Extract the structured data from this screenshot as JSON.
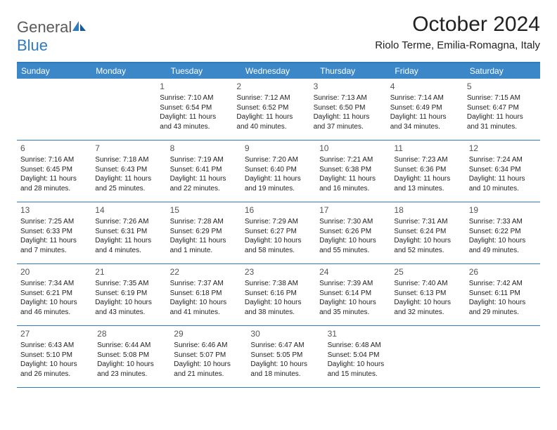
{
  "brand": {
    "general": "General",
    "blue": "Blue"
  },
  "title": "October 2024",
  "location": "Riolo Terme, Emilia-Romagna, Italy",
  "colors": {
    "header_bg": "#3b87c8",
    "border": "#2f7bbf",
    "logo_gray": "#5a5a5a",
    "logo_blue": "#2f7bbf"
  },
  "weekdays": [
    "Sunday",
    "Monday",
    "Tuesday",
    "Wednesday",
    "Thursday",
    "Friday",
    "Saturday"
  ],
  "weeks": [
    [
      null,
      null,
      {
        "n": "1",
        "sr": "Sunrise: 7:10 AM",
        "ss": "Sunset: 6:54 PM",
        "dl": "Daylight: 11 hours and 43 minutes."
      },
      {
        "n": "2",
        "sr": "Sunrise: 7:12 AM",
        "ss": "Sunset: 6:52 PM",
        "dl": "Daylight: 11 hours and 40 minutes."
      },
      {
        "n": "3",
        "sr": "Sunrise: 7:13 AM",
        "ss": "Sunset: 6:50 PM",
        "dl": "Daylight: 11 hours and 37 minutes."
      },
      {
        "n": "4",
        "sr": "Sunrise: 7:14 AM",
        "ss": "Sunset: 6:49 PM",
        "dl": "Daylight: 11 hours and 34 minutes."
      },
      {
        "n": "5",
        "sr": "Sunrise: 7:15 AM",
        "ss": "Sunset: 6:47 PM",
        "dl": "Daylight: 11 hours and 31 minutes."
      }
    ],
    [
      {
        "n": "6",
        "sr": "Sunrise: 7:16 AM",
        "ss": "Sunset: 6:45 PM",
        "dl": "Daylight: 11 hours and 28 minutes."
      },
      {
        "n": "7",
        "sr": "Sunrise: 7:18 AM",
        "ss": "Sunset: 6:43 PM",
        "dl": "Daylight: 11 hours and 25 minutes."
      },
      {
        "n": "8",
        "sr": "Sunrise: 7:19 AM",
        "ss": "Sunset: 6:41 PM",
        "dl": "Daylight: 11 hours and 22 minutes."
      },
      {
        "n": "9",
        "sr": "Sunrise: 7:20 AM",
        "ss": "Sunset: 6:40 PM",
        "dl": "Daylight: 11 hours and 19 minutes."
      },
      {
        "n": "10",
        "sr": "Sunrise: 7:21 AM",
        "ss": "Sunset: 6:38 PM",
        "dl": "Daylight: 11 hours and 16 minutes."
      },
      {
        "n": "11",
        "sr": "Sunrise: 7:23 AM",
        "ss": "Sunset: 6:36 PM",
        "dl": "Daylight: 11 hours and 13 minutes."
      },
      {
        "n": "12",
        "sr": "Sunrise: 7:24 AM",
        "ss": "Sunset: 6:34 PM",
        "dl": "Daylight: 11 hours and 10 minutes."
      }
    ],
    [
      {
        "n": "13",
        "sr": "Sunrise: 7:25 AM",
        "ss": "Sunset: 6:33 PM",
        "dl": "Daylight: 11 hours and 7 minutes."
      },
      {
        "n": "14",
        "sr": "Sunrise: 7:26 AM",
        "ss": "Sunset: 6:31 PM",
        "dl": "Daylight: 11 hours and 4 minutes."
      },
      {
        "n": "15",
        "sr": "Sunrise: 7:28 AM",
        "ss": "Sunset: 6:29 PM",
        "dl": "Daylight: 11 hours and 1 minute."
      },
      {
        "n": "16",
        "sr": "Sunrise: 7:29 AM",
        "ss": "Sunset: 6:27 PM",
        "dl": "Daylight: 10 hours and 58 minutes."
      },
      {
        "n": "17",
        "sr": "Sunrise: 7:30 AM",
        "ss": "Sunset: 6:26 PM",
        "dl": "Daylight: 10 hours and 55 minutes."
      },
      {
        "n": "18",
        "sr": "Sunrise: 7:31 AM",
        "ss": "Sunset: 6:24 PM",
        "dl": "Daylight: 10 hours and 52 minutes."
      },
      {
        "n": "19",
        "sr": "Sunrise: 7:33 AM",
        "ss": "Sunset: 6:22 PM",
        "dl": "Daylight: 10 hours and 49 minutes."
      }
    ],
    [
      {
        "n": "20",
        "sr": "Sunrise: 7:34 AM",
        "ss": "Sunset: 6:21 PM",
        "dl": "Daylight: 10 hours and 46 minutes."
      },
      {
        "n": "21",
        "sr": "Sunrise: 7:35 AM",
        "ss": "Sunset: 6:19 PM",
        "dl": "Daylight: 10 hours and 43 minutes."
      },
      {
        "n": "22",
        "sr": "Sunrise: 7:37 AM",
        "ss": "Sunset: 6:18 PM",
        "dl": "Daylight: 10 hours and 41 minutes."
      },
      {
        "n": "23",
        "sr": "Sunrise: 7:38 AM",
        "ss": "Sunset: 6:16 PM",
        "dl": "Daylight: 10 hours and 38 minutes."
      },
      {
        "n": "24",
        "sr": "Sunrise: 7:39 AM",
        "ss": "Sunset: 6:14 PM",
        "dl": "Daylight: 10 hours and 35 minutes."
      },
      {
        "n": "25",
        "sr": "Sunrise: 7:40 AM",
        "ss": "Sunset: 6:13 PM",
        "dl": "Daylight: 10 hours and 32 minutes."
      },
      {
        "n": "26",
        "sr": "Sunrise: 7:42 AM",
        "ss": "Sunset: 6:11 PM",
        "dl": "Daylight: 10 hours and 29 minutes."
      }
    ],
    [
      {
        "n": "27",
        "sr": "Sunrise: 6:43 AM",
        "ss": "Sunset: 5:10 PM",
        "dl": "Daylight: 10 hours and 26 minutes."
      },
      {
        "n": "28",
        "sr": "Sunrise: 6:44 AM",
        "ss": "Sunset: 5:08 PM",
        "dl": "Daylight: 10 hours and 23 minutes."
      },
      {
        "n": "29",
        "sr": "Sunrise: 6:46 AM",
        "ss": "Sunset: 5:07 PM",
        "dl": "Daylight: 10 hours and 21 minutes."
      },
      {
        "n": "30",
        "sr": "Sunrise: 6:47 AM",
        "ss": "Sunset: 5:05 PM",
        "dl": "Daylight: 10 hours and 18 minutes."
      },
      {
        "n": "31",
        "sr": "Sunrise: 6:48 AM",
        "ss": "Sunset: 5:04 PM",
        "dl": "Daylight: 10 hours and 15 minutes."
      },
      null,
      null
    ]
  ]
}
